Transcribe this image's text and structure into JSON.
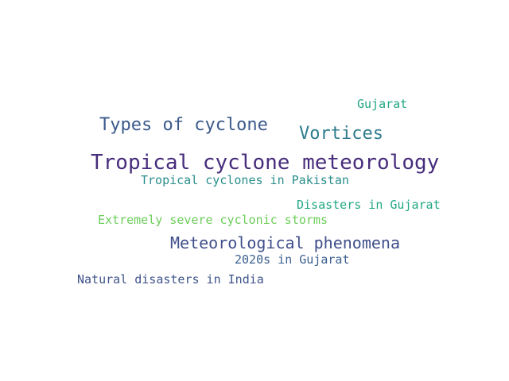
{
  "words": [
    {
      "text": "Tropical cyclone meteorology",
      "color": "#472d7b"
    },
    {
      "text": "Types of cyclone",
      "color": "#3b5a8c"
    },
    {
      "text": "Vortices",
      "color": "#2e7c8e"
    },
    {
      "text": "Meteorological phenomena",
      "color": "#3f4f8a"
    },
    {
      "text": "Gujarat",
      "color": "#21a685"
    },
    {
      "text": "Tropical cyclones in Pakistan",
      "color": "#2a8e8c"
    },
    {
      "text": "Disasters in Gujarat",
      "color": "#22a884"
    },
    {
      "text": "Extremely severe cyclonic storms",
      "color": "#6ccd5a"
    },
    {
      "text": "2020s in Gujarat",
      "color": "#3a5f8e"
    },
    {
      "text": "Natural disasters in India",
      "color": "#3e5389"
    }
  ]
}
